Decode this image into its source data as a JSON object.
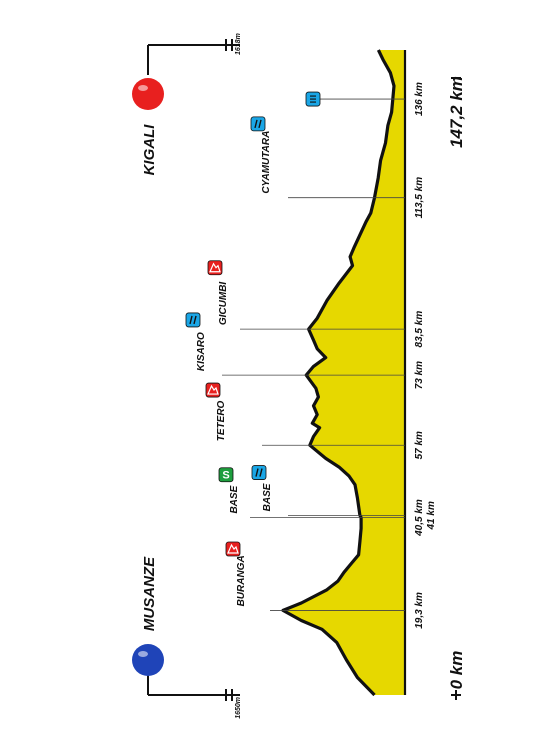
{
  "chart_data": {
    "type": "area",
    "orientation": "rotated-90-ccw",
    "x_unit": "km",
    "total_distance": 147.2,
    "total_label": "147,2 km",
    "start_label": "0 km",
    "start_city": "MUSANZE",
    "finish_city": "KIGALI",
    "start_color": "#1f44b8",
    "finish_color": "#e8201f",
    "fill_color": "#e6d800",
    "start_altitude_label": "1650m",
    "finish_altitude_label": "1618m",
    "profile": [
      {
        "x": 0,
        "y": 1650
      },
      {
        "x": 4,
        "y": 1790
      },
      {
        "x": 8,
        "y": 1880
      },
      {
        "x": 12,
        "y": 1960
      },
      {
        "x": 15,
        "y": 2080
      },
      {
        "x": 17,
        "y": 2250
      },
      {
        "x": 19.3,
        "y": 2400
      },
      {
        "x": 21,
        "y": 2250
      },
      {
        "x": 24,
        "y": 2040
      },
      {
        "x": 26,
        "y": 1950
      },
      {
        "x": 28,
        "y": 1900
      },
      {
        "x": 30,
        "y": 1840
      },
      {
        "x": 32,
        "y": 1780
      },
      {
        "x": 35,
        "y": 1770
      },
      {
        "x": 38,
        "y": 1760
      },
      {
        "x": 40.5,
        "y": 1760
      },
      {
        "x": 41,
        "y": 1770
      },
      {
        "x": 45,
        "y": 1790
      },
      {
        "x": 48,
        "y": 1810
      },
      {
        "x": 50,
        "y": 1860
      },
      {
        "x": 52,
        "y": 1940
      },
      {
        "x": 54,
        "y": 2050
      },
      {
        "x": 57,
        "y": 2180
      },
      {
        "x": 59,
        "y": 2150
      },
      {
        "x": 61,
        "y": 2100
      },
      {
        "x": 62,
        "y": 2160
      },
      {
        "x": 64,
        "y": 2120
      },
      {
        "x": 66,
        "y": 2150
      },
      {
        "x": 68,
        "y": 2110
      },
      {
        "x": 70,
        "y": 2130
      },
      {
        "x": 73,
        "y": 2210
      },
      {
        "x": 75,
        "y": 2150
      },
      {
        "x": 77,
        "y": 2050
      },
      {
        "x": 79,
        "y": 2120
      },
      {
        "x": 81,
        "y": 2150
      },
      {
        "x": 83.5,
        "y": 2190
      },
      {
        "x": 86,
        "y": 2120
      },
      {
        "x": 90,
        "y": 2040
      },
      {
        "x": 94,
        "y": 1940
      },
      {
        "x": 98,
        "y": 1830
      },
      {
        "x": 100,
        "y": 1850
      },
      {
        "x": 102,
        "y": 1820
      },
      {
        "x": 105,
        "y": 1770
      },
      {
        "x": 108,
        "y": 1720
      },
      {
        "x": 110,
        "y": 1680
      },
      {
        "x": 113.5,
        "y": 1650
      },
      {
        "x": 118,
        "y": 1620
      },
      {
        "x": 122,
        "y": 1600
      },
      {
        "x": 126,
        "y": 1560
      },
      {
        "x": 130,
        "y": 1540
      },
      {
        "x": 133,
        "y": 1510
      },
      {
        "x": 136,
        "y": 1500
      },
      {
        "x": 139,
        "y": 1490
      },
      {
        "x": 142,
        "y": 1520
      },
      {
        "x": 145,
        "y": 1580
      },
      {
        "x": 147.2,
        "y": 1618
      }
    ],
    "waypoints": [
      {
        "km": 19.3,
        "km_label": "19,3 km",
        "name": "BURANGA",
        "type": "climb",
        "icon": "mountain-icon"
      },
      {
        "km": 40.5,
        "km_label": "40,5 km",
        "name": "BASE",
        "type": "sprint",
        "icon": "sprint-s-icon"
      },
      {
        "km": 41,
        "km_label": "41 km",
        "name": "BASE",
        "type": "feed",
        "icon": "feed-zone-icon"
      },
      {
        "km": 57,
        "km_label": "57 km",
        "name": "TETERO",
        "type": "climb",
        "icon": "mountain-icon"
      },
      {
        "km": 73,
        "km_label": "73 km",
        "name": "KISARO",
        "type": "feed",
        "icon": "feed-zone-icon"
      },
      {
        "km": 83.5,
        "km_label": "83,5 km",
        "name": "GICUMBI",
        "type": "climb",
        "icon": "mountain-icon"
      },
      {
        "km": 113.5,
        "km_label": "113,5 km",
        "name": "CYAMUTARA",
        "type": "feed",
        "icon": "feed-zone-icon"
      },
      {
        "km": 136,
        "km_label": "136 km",
        "name": "",
        "type": "finish-km",
        "icon": "finish-line-icon"
      }
    ],
    "icon_colors": {
      "climb": "#e8201f",
      "sprint": "#1e9e3e",
      "feed": "#1aa6e6",
      "finish-km": "#1aa6e6"
    }
  }
}
